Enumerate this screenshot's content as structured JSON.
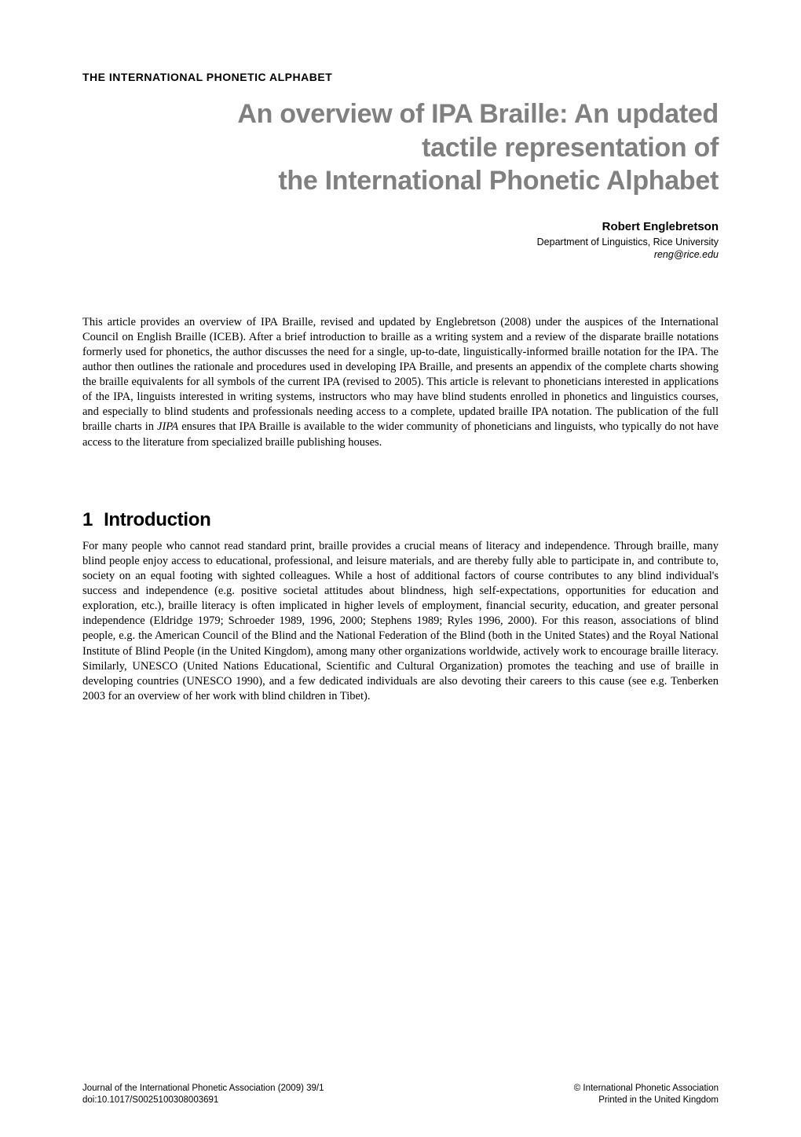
{
  "section_label": "THE INTERNATIONAL PHONETIC ALPHABET",
  "title_line1": "An overview of IPA Braille: An updated",
  "title_line2": "tactile representation of",
  "title_line3": "the International Phonetic Alphabet",
  "author": "Robert Englebretson",
  "affiliation": "Department of Linguistics, Rice University",
  "email": "reng@rice.edu",
  "abstract_part1": "This article provides an overview of IPA Braille, revised and updated by Englebretson (2008) under the auspices of the International Council on English Braille (ICEB). After a brief introduction to braille as a writing system and a review of the disparate braille notations formerly used for phonetics, the author discusses the need for a single, up-to-date, linguistically-informed braille notation for the IPA. The author then outlines the rationale and procedures used in developing IPA Braille, and presents an appendix of the complete charts showing the braille equivalents for all symbols of the current IPA (revised to 2005). This article is relevant to phoneticians interested in applications of the IPA, linguists interested in writing systems, instructors who may have blind students enrolled in phonetics and linguistics courses, and especially to blind students and professionals needing access to a complete, updated braille IPA notation. The publication of the full braille charts in ",
  "abstract_italic": "JIPA",
  "abstract_part2": " ensures that IPA Braille is available to the wider community of phoneticians and linguists, who typically do not have access to the literature from specialized braille publishing houses.",
  "heading_number": "1",
  "heading_text": "Introduction",
  "body": "For many people who cannot read standard print, braille provides a crucial means of literacy and independence. Through braille, many blind people enjoy access to educational, professional, and leisure materials, and are thereby fully able to participate in, and contribute to, society on an equal footing with sighted colleagues. While a host of additional factors of course contributes to any blind individual's success and independence (e.g. positive societal attitudes about blindness, high self-expectations, opportunities for education and exploration, etc.), braille literacy is often implicated in higher levels of employment, financial security, education, and greater personal independence (Eldridge 1979; Schroeder 1989, 1996, 2000; Stephens 1989; Ryles 1996, 2000). For this reason, associations of blind people, e.g. the American Council of the Blind and the National Federation of the Blind (both in the United States) and the Royal National Institute of Blind People (in the United Kingdom), among many other organizations worldwide, actively work to encourage braille literacy. Similarly, UNESCO (United Nations Educational, Scientific and Cultural Organization) promotes the teaching and use of braille in developing countries (UNESCO 1990), and a few dedicated individuals are also devoting their careers to this cause (see e.g. Tenberken 2003 for an overview of her work with blind children in Tibet).",
  "footer_left_line1": "Journal of the International Phonetic Association (2009) 39/1",
  "footer_left_line2": "doi:10.1017/S0025100308003691",
  "footer_right_line1": "© International Phonetic Association",
  "footer_right_line2": "Printed in the United Kingdom"
}
